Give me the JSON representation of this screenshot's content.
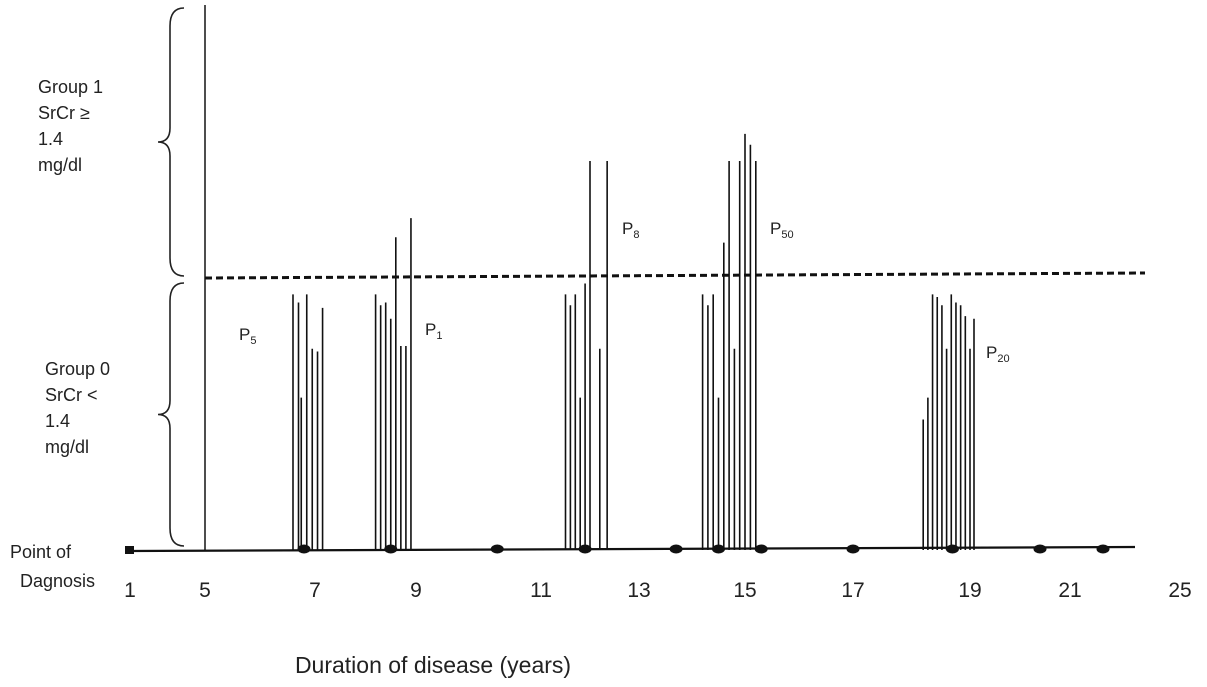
{
  "chart_data": {
    "type": "bar",
    "xlabel": "Duration of disease (years)",
    "x_ticks": [
      "1",
      "5",
      "7",
      "9",
      "11",
      "13",
      "15",
      "17",
      "19",
      "21",
      "25"
    ],
    "origin_label": [
      "Point of",
      "Dagnosis"
    ],
    "threshold": {
      "value": 1.4,
      "unit": "mg/dl",
      "style": "dashed"
    },
    "groups": [
      {
        "lines": [
          "Group  1",
          "SrCr ≥",
          "1.4",
          "mg/dl"
        ]
      },
      {
        "lines": [
          "Group  0",
          "SrCr <",
          "1.4",
          "mg/dl"
        ]
      }
    ],
    "patients": [
      {
        "prefix": "P",
        "sub": "5",
        "x": [
          6.6,
          6.7,
          6.75,
          6.85,
          6.95,
          7.05,
          7.15
        ],
        "rel": [
          0.94,
          0.91,
          0.56,
          0.94,
          0.74,
          0.73,
          0.89
        ]
      },
      {
        "prefix": "P",
        "sub": "1",
        "x": [
          8.2,
          8.3,
          8.4,
          8.5,
          8.6,
          8.7,
          8.8,
          8.9
        ],
        "rel": [
          0.94,
          0.9,
          0.91,
          0.85,
          1.15,
          0.75,
          0.75,
          1.22
        ]
      },
      {
        "prefix": "P",
        "sub": "8",
        "x": [
          11.5,
          11.6,
          11.7,
          11.8,
          11.9,
          12.0,
          12.2,
          12.35
        ],
        "rel": [
          0.94,
          0.9,
          0.94,
          0.56,
          0.98,
          1.43,
          0.74,
          1.43
        ]
      },
      {
        "prefix": "P",
        "sub": "50",
        "x": [
          14.2,
          14.3,
          14.4,
          14.5,
          14.6,
          14.7,
          14.8,
          14.9,
          15.0,
          15.1,
          15.2
        ],
        "rel": [
          0.94,
          0.9,
          0.94,
          0.56,
          1.13,
          1.43,
          0.74,
          1.43,
          1.53,
          1.49,
          1.43
        ]
      },
      {
        "prefix": "P",
        "sub": "20",
        "x": [
          18.2,
          18.28,
          18.36,
          18.44,
          18.52,
          18.6,
          18.68,
          18.76,
          18.84,
          18.92,
          19.0,
          19.08
        ],
        "rel": [
          0.48,
          0.56,
          0.94,
          0.93,
          0.9,
          0.74,
          0.94,
          0.91,
          0.9,
          0.86,
          0.74,
          0.85
        ]
      }
    ],
    "timeline_dots": [
      1,
      6.8,
      8.5,
      10.3,
      11.9,
      13.7,
      14.5,
      15.3,
      17.0,
      18.7,
      20.4,
      22.2
    ]
  }
}
